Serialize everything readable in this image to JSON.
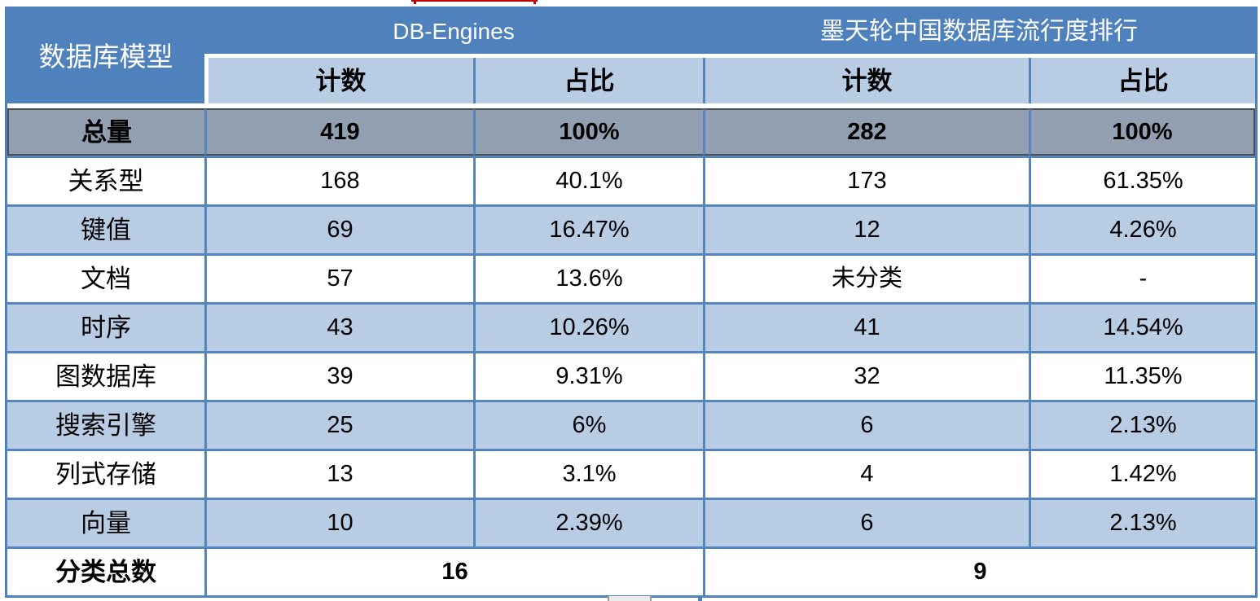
{
  "chart_data": {
    "type": "table",
    "corner_header": "数据库模型",
    "column_groups": [
      {
        "label": "DB-Engines",
        "subcolumns": [
          "计数",
          "占比"
        ]
      },
      {
        "label": "墨天轮中国数据库流行度排行",
        "subcolumns": [
          "计数",
          "占比"
        ]
      }
    ],
    "total_row": {
      "label": "总量",
      "cells": [
        "419",
        "100%",
        "282",
        "100%"
      ]
    },
    "rows": [
      {
        "label": "关系型",
        "cells": [
          "168",
          "40.1%",
          "173",
          "61.35%"
        ]
      },
      {
        "label": "键值",
        "cells": [
          "69",
          "16.47%",
          "12",
          "4.26%"
        ]
      },
      {
        "label": "文档",
        "cells": [
          "57",
          "13.6%",
          "未分类",
          "-"
        ]
      },
      {
        "label": "时序",
        "cells": [
          "43",
          "10.26%",
          "41",
          "14.54%"
        ]
      },
      {
        "label": "图数据库",
        "cells": [
          "39",
          "9.31%",
          "32",
          "11.35%"
        ]
      },
      {
        "label": "搜索引擎",
        "cells": [
          "25",
          "6%",
          "6",
          "2.13%"
        ]
      },
      {
        "label": "列式存储",
        "cells": [
          "13",
          "3.1%",
          "4",
          "1.42%"
        ]
      },
      {
        "label": "向量",
        "cells": [
          "10",
          "2.39%",
          "6",
          "2.13%"
        ]
      }
    ],
    "footer_row": {
      "label": "分类总数",
      "cells": [
        "16",
        "9"
      ]
    },
    "layout_hints": {
      "grid": "on",
      "legend_position": "none"
    }
  },
  "colors": {
    "header_blue": "#4f81bd",
    "row_light_blue": "#b8cce4",
    "total_row_gray": "#929fb1",
    "border_blue": "#5584bf",
    "total_row_border_dark": "#4d4d4d",
    "artifact_red": "#c00000"
  }
}
